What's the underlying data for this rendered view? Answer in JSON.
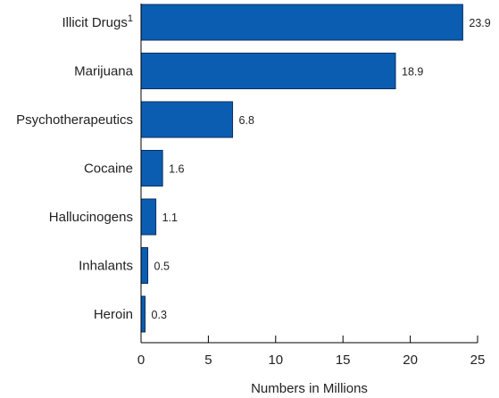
{
  "chart_data": {
    "type": "bar",
    "orientation": "horizontal",
    "title": "",
    "xlabel": "Numbers in Millions",
    "ylabel": "",
    "categories": [
      "Illicit Drugs",
      "Marijuana",
      "Psychotherapeutics",
      "Cocaine",
      "Hallucinogens",
      "Inhalants",
      "Heroin"
    ],
    "category_superscripts": [
      "1",
      "",
      "",
      "",
      "",
      "",
      ""
    ],
    "values": [
      23.9,
      18.9,
      6.8,
      1.6,
      1.1,
      0.5,
      0.3
    ],
    "value_labels": [
      "23.9",
      "18.9",
      "6.8",
      "1.6",
      "1.1",
      "0.5",
      "0.3"
    ],
    "xlim": [
      0,
      25
    ],
    "xticks": [
      0,
      5,
      10,
      15,
      20,
      25
    ],
    "grid": false,
    "legend": "none",
    "bar_color": "#0a5db0"
  }
}
